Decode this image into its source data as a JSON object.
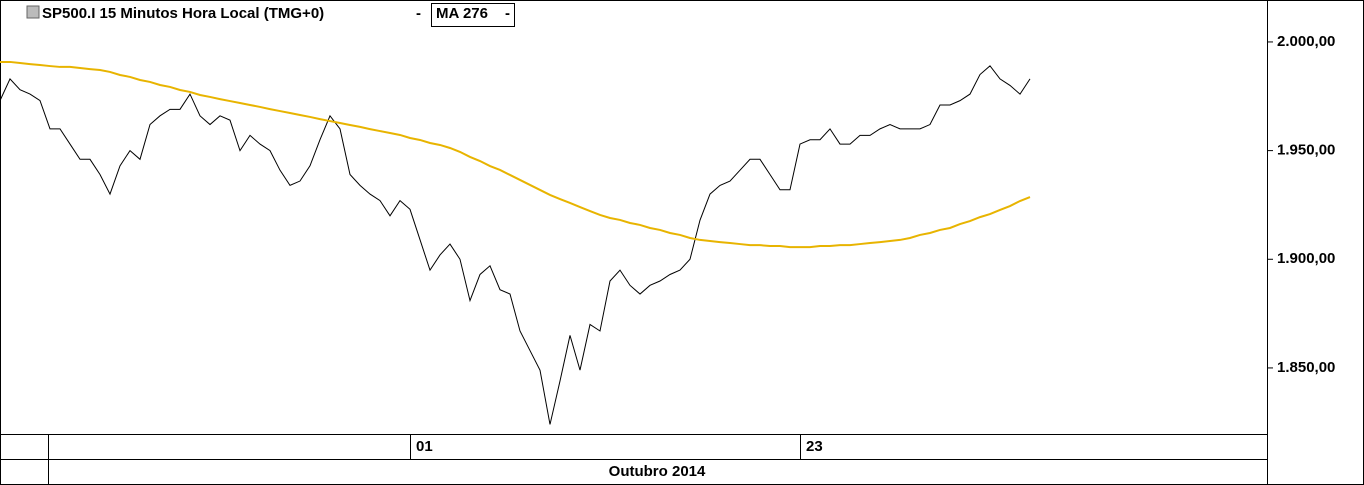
{
  "chart_data": {
    "type": "line",
    "x_period_label": "Outubro 2014",
    "categories": [
      null,
      null,
      null,
      null,
      null,
      null,
      null,
      null,
      null,
      null,
      null,
      null,
      null,
      null,
      null,
      null,
      null,
      null,
      null,
      null,
      null,
      null,
      null,
      null,
      null,
      null,
      null,
      null,
      null,
      null,
      null,
      null,
      null,
      null,
      null,
      null,
      null,
      null,
      null,
      null,
      null,
      "01",
      null,
      null,
      null,
      null,
      null,
      null,
      null,
      null,
      null,
      null,
      null,
      null,
      null,
      null,
      null,
      null,
      null,
      null,
      null,
      null,
      null,
      null,
      null,
      null,
      null,
      null,
      null,
      null,
      null,
      null,
      null,
      null,
      null,
      null,
      null,
      null,
      null,
      null,
      "23",
      null,
      null,
      null,
      null,
      null,
      null,
      null,
      null,
      null,
      null,
      null,
      null,
      null,
      null,
      null,
      null,
      null,
      null,
      null,
      null,
      null,
      null,
      null
    ],
    "series": [
      {
        "name": "SP500.I 15 Minutos Hora Local (TMG+0)",
        "color": "#000000",
        "values": [
          1973,
          1983,
          1978,
          1976,
          1973,
          1960,
          1960,
          1953,
          1946,
          1946,
          1939,
          1930,
          1943,
          1950,
          1946,
          1962,
          1966,
          1969,
          1969,
          1976,
          1966,
          1962,
          1966,
          1964,
          1950,
          1957,
          1953,
          1950,
          1941,
          1934,
          1936,
          1943,
          1955,
          1966,
          1960,
          1939,
          1934,
          1930,
          1927,
          1920,
          1927,
          1923,
          1909,
          1895,
          1902,
          1907,
          1900,
          1881,
          1893,
          1897,
          1886,
          1884,
          1867,
          1858,
          1849,
          1824,
          1844,
          1865,
          1849,
          1870,
          1867,
          1890,
          1895,
          1888,
          1884,
          1888,
          1890,
          1893,
          1895,
          1900,
          1918,
          1930,
          1934,
          1936,
          1941,
          1946,
          1946,
          1939,
          1932,
          1932,
          1953,
          1955,
          1955,
          1960,
          1953,
          1953,
          1957,
          1957,
          1960,
          1962,
          1960,
          1960,
          1960,
          1962,
          1971,
          1971,
          1973,
          1976,
          1985,
          1989,
          1983,
          1980,
          1976,
          1983
        ]
      },
      {
        "name": "MA 276",
        "color": "#e8b400",
        "values": [
          1990.8,
          1990.8,
          1990.3,
          1989.8,
          1989.4,
          1988.9,
          1988.5,
          1988.5,
          1988.0,
          1987.5,
          1987.1,
          1986.2,
          1984.8,
          1983.9,
          1982.5,
          1981.6,
          1980.2,
          1979.3,
          1977.9,
          1977.0,
          1975.6,
          1974.7,
          1973.7,
          1972.8,
          1971.9,
          1971.0,
          1970.1,
          1969.1,
          1968.2,
          1967.3,
          1966.4,
          1965.5,
          1964.5,
          1963.6,
          1962.7,
          1961.8,
          1960.9,
          1959.9,
          1959.0,
          1958.1,
          1957.2,
          1955.8,
          1954.9,
          1953.5,
          1952.6,
          1951.2,
          1949.4,
          1947.1,
          1945.2,
          1942.9,
          1941.1,
          1938.8,
          1936.5,
          1934.2,
          1931.9,
          1929.6,
          1927.7,
          1925.9,
          1924.0,
          1922.2,
          1920.4,
          1919.0,
          1918.1,
          1916.7,
          1915.8,
          1914.4,
          1913.5,
          1912.1,
          1911.2,
          1909.8,
          1908.9,
          1908.4,
          1907.9,
          1907.5,
          1907.0,
          1906.5,
          1906.5,
          1906.1,
          1906.1,
          1905.6,
          1905.6,
          1905.6,
          1906.1,
          1906.1,
          1906.5,
          1906.5,
          1907.0,
          1907.5,
          1907.9,
          1908.4,
          1908.9,
          1909.8,
          1911.2,
          1912.1,
          1913.5,
          1914.4,
          1916.2,
          1917.6,
          1919.4,
          1920.8,
          1922.7,
          1924.5,
          1926.8,
          1928.6
        ]
      }
    ],
    "ylim": [
      1819.6,
      2019.3
    ],
    "yticks": [
      {
        "value": 1850,
        "label": "1.850,00"
      },
      {
        "value": 1900,
        "label": "1.900,00"
      },
      {
        "value": 1950,
        "label": "1.950,00"
      },
      {
        "value": 2000,
        "label": "2.000,00"
      }
    ],
    "grid": false
  }
}
